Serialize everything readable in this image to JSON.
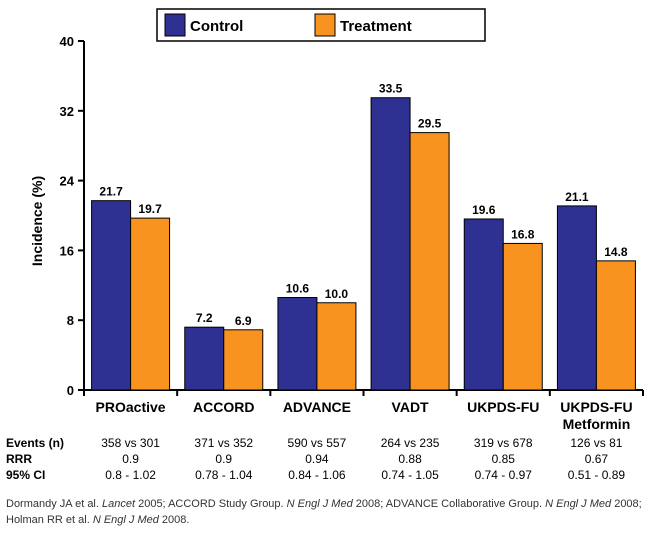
{
  "chart_data": {
    "type": "bar",
    "ylabel": "Incidence (%)",
    "ylim": [
      0,
      40
    ],
    "yticks": [
      0,
      8,
      16,
      24,
      32,
      40
    ],
    "categories": [
      "PROactive",
      "ACCORD",
      "ADVANCE",
      "VADT",
      "UKPDS-FU",
      "UKPDS-FU Metformin"
    ],
    "category_lines": [
      [
        "PROactive"
      ],
      [
        "ACCORD"
      ],
      [
        "ADVANCE"
      ],
      [
        "VADT"
      ],
      [
        "UKPDS-FU"
      ],
      [
        "UKPDS-FU",
        "Metformin"
      ]
    ],
    "series": [
      {
        "name": "Control",
        "color": "#2e3192",
        "values": [
          21.7,
          7.2,
          10.6,
          33.5,
          19.6,
          21.1
        ]
      },
      {
        "name": "Treatment",
        "color": "#f7931e",
        "values": [
          19.7,
          6.9,
          10.0,
          29.5,
          16.8,
          14.8
        ]
      }
    ],
    "legend_position": "top-center",
    "grid": false
  },
  "stats_table": {
    "rows": [
      {
        "label": "Events (n)",
        "values": [
          "358 vs 301",
          "371 vs 352",
          "590 vs 557",
          "264 vs 235",
          "319 vs 678",
          "126 vs 81"
        ]
      },
      {
        "label": "RRR",
        "values": [
          "0.9",
          "0.9",
          "0.94",
          "0.88",
          "0.85",
          "0.67"
        ]
      },
      {
        "label": "95% CI",
        "values": [
          "0.8 - 1.02",
          "0.78 - 1.04",
          "0.84 - 1.06",
          "0.74 - 1.05",
          "0.74 - 0.97",
          "0.51 - 0.89"
        ]
      }
    ]
  },
  "footnote": {
    "parts": [
      {
        "text": "Dormandy JA et al. ",
        "italic": false
      },
      {
        "text": "Lancet",
        "italic": true
      },
      {
        "text": " 2005; ACCORD Study Group. ",
        "italic": false
      },
      {
        "text": "N Engl J Med",
        "italic": true
      },
      {
        "text": " 2008; ADVANCE Collaborative Group. ",
        "italic": false
      },
      {
        "text": "N Engl J Med",
        "italic": true
      },
      {
        "text": " 2008; Holman RR et al. ",
        "italic": false
      },
      {
        "text": "N Engl J Med",
        "italic": true
      },
      {
        "text": " 2008.",
        "italic": false
      }
    ]
  }
}
